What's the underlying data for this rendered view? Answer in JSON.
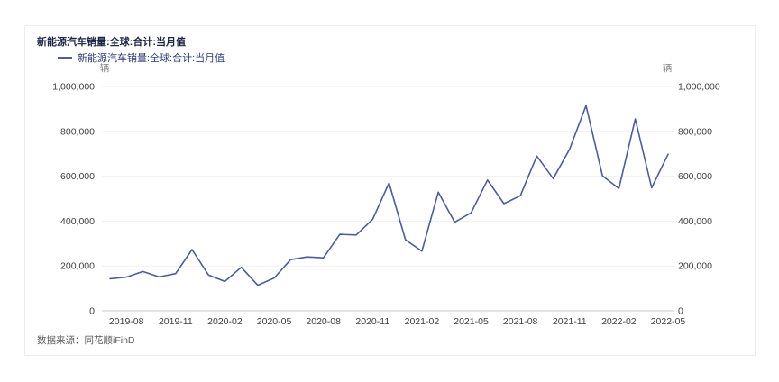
{
  "card": {
    "title": "新能源汽车销量:全球:合计:当月值",
    "legend": {
      "label": "新能源汽车销量:全球:合计:当月值"
    },
    "footer": "数据来源：同花顺iFinD"
  },
  "chart_data": {
    "type": "line",
    "title": "新能源汽车销量:全球:合计:当月值",
    "series_name": "新能源汽车销量:全球:合计:当月值",
    "unit_left": "辆",
    "unit_right": "辆",
    "line_color": "#4d5c9b",
    "grid": true,
    "legend_position": "top-left",
    "dual_axis": true,
    "ylim": [
      0,
      1000000
    ],
    "categories": [
      "2019-07",
      "2019-08",
      "2019-09",
      "2019-10",
      "2019-11",
      "2019-12",
      "2020-01",
      "2020-02",
      "2020-03",
      "2020-04",
      "2020-05",
      "2020-06",
      "2020-07",
      "2020-08",
      "2020-09",
      "2020-10",
      "2020-11",
      "2020-12",
      "2021-01",
      "2021-02",
      "2021-03",
      "2021-04",
      "2021-05",
      "2021-06",
      "2021-07",
      "2021-08",
      "2021-09",
      "2021-10",
      "2021-11",
      "2021-12",
      "2022-01",
      "2022-02",
      "2022-03",
      "2022-04",
      "2022-05"
    ],
    "values": [
      143000,
      150000,
      175000,
      151000,
      166000,
      273000,
      160000,
      131000,
      194000,
      114000,
      146000,
      228000,
      240000,
      236000,
      341000,
      338000,
      408000,
      570000,
      317000,
      266000,
      529000,
      395000,
      437000,
      583000,
      478000,
      513000,
      690000,
      589000,
      721000,
      915000,
      602000,
      545000,
      855000,
      548000,
      698000
    ],
    "x_tick_labels": [
      "2019-08",
      "2019-11",
      "2020-02",
      "2020-05",
      "2020-08",
      "2020-11",
      "2021-02",
      "2021-05",
      "2021-08",
      "2021-11",
      "2022-02",
      "2022-05"
    ],
    "y_tick_values": [
      0,
      200000,
      400000,
      600000,
      800000,
      1000000
    ],
    "y_tick_labels": [
      "0",
      "200,000",
      "400,000",
      "600,000",
      "800,000",
      "1,000,000"
    ]
  }
}
